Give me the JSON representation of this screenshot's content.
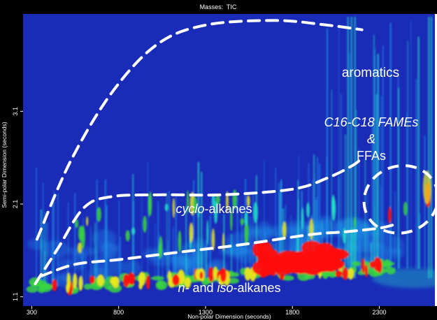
{
  "chart_data": {
    "type": "heatmap",
    "title": "Masses:  TIC",
    "xlabel": "Non-polar Dimension (seconds)",
    "ylabel": "Semi-polar Dimension (seconds)",
    "xlim": [
      250,
      2620
    ],
    "ylim": [
      1.0,
      4.15
    ],
    "x_ticks": [
      300,
      800,
      1300,
      1800,
      2300
    ],
    "y_ticks": [
      1.1,
      2.1,
      3.1
    ],
    "x_tick_labels": [
      "300",
      "800",
      "1300",
      "1800",
      "2300"
    ],
    "y_tick_labels": [
      "1.1",
      "2.1",
      "3.1"
    ],
    "colormap": [
      "#1a2bb8",
      "#1f8fe8",
      "#22e0c8",
      "#39d640",
      "#e8e820",
      "#ff1010"
    ],
    "background_color": "#1a2bb8",
    "regions": [
      {
        "label_parts": [
          {
            "text": "aromatics",
            "italic": false
          }
        ],
        "outline": "dashed",
        "boundary_points": [
          [
            330,
            1.72
          ],
          [
            520,
            2.55
          ],
          [
            760,
            3.3
          ],
          [
            1020,
            3.82
          ],
          [
            1300,
            4.03
          ],
          [
            1700,
            4.08
          ],
          [
            2000,
            4.03
          ],
          [
            2200,
            3.98
          ]
        ]
      },
      {
        "label_parts": [
          {
            "text": "C16-C18 FAMEs",
            "italic": true
          },
          {
            "text": "&",
            "italic": true
          },
          {
            "text": "FFAs",
            "italic": false
          }
        ]
      },
      {
        "label_parts": [
          {
            "text": "cyclo",
            "italic": true
          },
          {
            "text": "-alkanes",
            "italic": false
          }
        ],
        "outline": "dashed",
        "boundary_points": [
          [
            320,
            1.24
          ],
          [
            450,
            1.62
          ],
          [
            600,
            2.06
          ],
          [
            760,
            2.18
          ],
          [
            1050,
            2.2
          ],
          [
            1400,
            2.2
          ],
          [
            1800,
            2.26
          ],
          [
            2000,
            2.38
          ],
          [
            2150,
            2.52
          ],
          [
            2200,
            2.6
          ]
        ]
      },
      {
        "label_parts": [
          {
            "text": "n-",
            "italic": true
          },
          {
            "text": " and ",
            "italic": false
          },
          {
            "text": "iso",
            "italic": true
          },
          {
            "text": "-alkanes",
            "italic": false
          }
        ],
        "outline": "dashed",
        "boundary_points": [
          [
            350,
            1.32
          ],
          [
            550,
            1.45
          ],
          [
            800,
            1.5
          ],
          [
            1100,
            1.57
          ],
          [
            1500,
            1.66
          ],
          [
            1900,
            1.77
          ],
          [
            2100,
            1.8
          ],
          [
            2300,
            1.84
          ],
          [
            2390,
            1.88
          ]
        ]
      },
      {
        "label_parts": [],
        "outline": "dashed-ellipse",
        "center": [
          2425,
          2.15
        ],
        "radius_data": [
          215,
          0.36
        ]
      }
    ],
    "peak_bands": [
      {
        "name": "n-/iso-alkanes band",
        "x": [
          300,
          2390
        ],
        "y_center": [
          1.22,
          1.45
        ],
        "intensity": "high"
      },
      {
        "name": "cyclo-alkanes streaks",
        "x": [
          400,
          2200
        ],
        "y_center": [
          1.5,
          2.3
        ],
        "intensity": "medium"
      },
      {
        "name": "FAME/FFA cluster",
        "x": [
          2450,
          2590
        ],
        "y_center": [
          2.0,
          2.5
        ],
        "intensity": "high"
      },
      {
        "name": "late wrap-around streaks",
        "x": [
          2100,
          2600
        ],
        "y_center": [
          1.1,
          4.1
        ],
        "intensity": "medium"
      }
    ]
  }
}
